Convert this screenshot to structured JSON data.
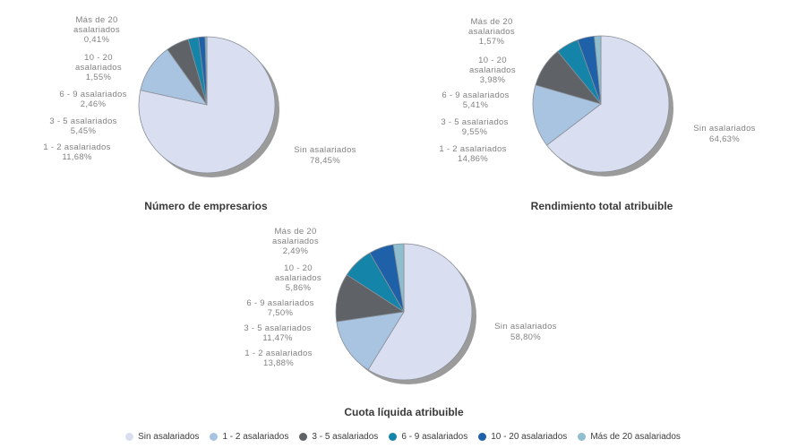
{
  "page": {
    "background": "#ffffff"
  },
  "categories": [
    {
      "key": "sin",
      "label": "Sin asalariados",
      "color": "#d9def0"
    },
    {
      "key": "1-2",
      "label": "1 - 2 asalariados",
      "color": "#a8c4e1"
    },
    {
      "key": "3-5",
      "label": "3 - 5 asalariados",
      "color": "#5f6367"
    },
    {
      "key": "6-9",
      "label": "6 - 9 asalariados",
      "color": "#1485a8"
    },
    {
      "key": "10-20",
      "label": "10 - 20 asalariados",
      "color": "#1f61a8"
    },
    {
      "key": "mas-20",
      "label": "Más de 20 asalariados",
      "color": "#8fbecf"
    }
  ],
  "style": {
    "slice_stroke": "#8a8f98",
    "shadow_color": "#9b9b9b"
  },
  "chart_data": [
    {
      "type": "pie",
      "title": "Número de empresarios",
      "categories": [
        "Sin asalariados",
        "1 - 2 asalariados",
        "3 - 5 asalariados",
        "6 - 9 asalariados",
        "10 - 20 asalariados",
        "Más de 20 asalariados"
      ],
      "values": [
        78.45,
        11.68,
        5.45,
        2.46,
        1.55,
        0.41
      ],
      "start_angle_deg": 0,
      "direction": "clockwise",
      "labels": {
        "sin": "Sin asalariados\n78,45%",
        "c1_2": "1 - 2 asalariados\n11,68%",
        "c3_5": "3 - 5 asalariados\n5,45%",
        "c6_9": "6 - 9 asalariados\n2,46%",
        "c10_20": "10 - 20\nasalariados\n1,55%",
        "mas20": "Más de 20\nasalariados\n0,41%"
      }
    },
    {
      "type": "pie",
      "title": "Rendimiento total atribuible",
      "categories": [
        "Sin asalariados",
        "1 - 2 asalariados",
        "3 - 5 asalariados",
        "6 - 9 asalariados",
        "10 - 20 asalariados",
        "Más de 20 asalariados"
      ],
      "values": [
        64.63,
        14.86,
        9.55,
        5.41,
        3.98,
        1.57
      ],
      "start_angle_deg": 0,
      "direction": "clockwise",
      "labels": {
        "sin": "Sin asalariados\n64,63%",
        "c1_2": "1 - 2 asalariados\n14,86%",
        "c3_5": "3 - 5 asalariados\n9,55%",
        "c6_9": "6 - 9 asalariados\n5,41%",
        "c10_20": "10 - 20\nasalariados\n3,98%",
        "mas20": "Más de 20\nasalariados\n1,57%"
      }
    },
    {
      "type": "pie",
      "title": "Cuota líquida atribuible",
      "categories": [
        "Sin asalariados",
        "1 - 2 asalariados",
        "3 - 5 asalariados",
        "6 - 9 asalariados",
        "10 - 20 asalariados",
        "Más de 20 asalariados"
      ],
      "values": [
        58.8,
        13.88,
        11.47,
        7.5,
        5.86,
        2.49
      ],
      "start_angle_deg": 0,
      "direction": "clockwise",
      "labels": {
        "sin": "Sin asalariados\n58,80%",
        "c1_2": "1 - 2 asalariados\n13,88%",
        "c3_5": "3 - 5 asalariados\n11,47%",
        "c6_9": "6 - 9 asalariados\n7,50%",
        "c10_20": "10 - 20\nasalariados\n5,86%",
        "mas20": "Más de 20\nasalariados\n2,49%"
      }
    }
  ],
  "legend": {
    "items": [
      "Sin asalariados",
      "1 - 2 asalariados",
      "3 - 5 asalariados",
      "6 - 9 asalariados",
      "10 - 20 asalariados",
      "Más de 20 asalariados"
    ]
  }
}
